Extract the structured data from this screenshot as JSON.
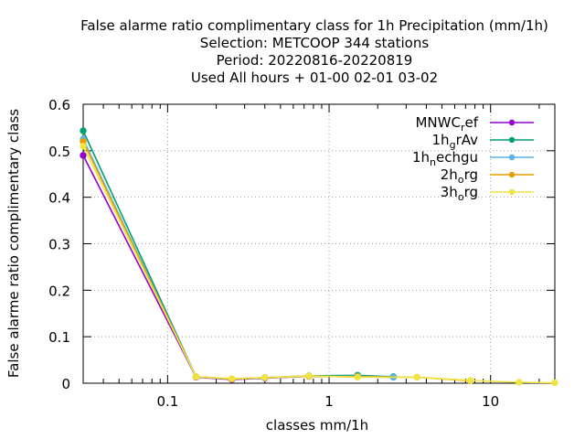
{
  "chart_data": {
    "type": "line",
    "title_lines": [
      "False alarme ratio complimentary class  for 1h Precipitation (mm/1h)",
      "Selection: METCOOP    344 stations",
      "Period: 20220816-20220819",
      "Used  All hours + 01-00 02-01 03-02"
    ],
    "xlabel": "classes mm/1h",
    "ylabel": "False alarme ratio complimentary class",
    "x_scale": "log",
    "xlim": [
      0.03,
      25
    ],
    "ylim": [
      0,
      0.6
    ],
    "x_ticks": [
      {
        "value": 0.1,
        "label": "0.1"
      },
      {
        "value": 1,
        "label": "1"
      },
      {
        "value": 10,
        "label": "10"
      }
    ],
    "y_ticks": [
      {
        "value": 0,
        "label": "0"
      },
      {
        "value": 0.1,
        "label": "0.1"
      },
      {
        "value": 0.2,
        "label": "0.2"
      },
      {
        "value": 0.3,
        "label": "0.3"
      },
      {
        "value": 0.4,
        "label": "0.4"
      },
      {
        "value": 0.5,
        "label": "0.5"
      },
      {
        "value": 0.6,
        "label": "0.6"
      }
    ],
    "grid": true,
    "legend_position": "top-right",
    "series": [
      {
        "name": "MNWC_ref",
        "legend_main": "MNWC",
        "legend_sub": "r",
        "legend_tail": "ef",
        "color": "#9400d3",
        "x": [
          0.03,
          0.15,
          0.25,
          0.4,
          0.75,
          1.5,
          2.5
        ],
        "y": [
          0.49,
          0.013,
          0.008,
          0.011,
          0.015,
          0.014,
          0.013
        ]
      },
      {
        "name": "1h_grAv",
        "legend_main": "1h",
        "legend_sub": "g",
        "legend_tail": "rAv",
        "color": "#009e73",
        "x": [
          0.03,
          0.15,
          0.25,
          0.4,
          0.75,
          1.5,
          2.5
        ],
        "y": [
          0.543,
          0.014,
          0.009,
          0.012,
          0.016,
          0.017,
          0.014
        ]
      },
      {
        "name": "1h_nechgu",
        "legend_main": "1h",
        "legend_sub": "n",
        "legend_tail": "echgu",
        "color": "#56b4e9",
        "x": [
          0.03,
          0.15,
          0.25,
          0.4,
          0.75,
          1.5,
          2.5
        ],
        "y": [
          0.525,
          0.014,
          0.009,
          0.012,
          0.015,
          0.015,
          0.013
        ]
      },
      {
        "name": "2h_org",
        "legend_main": "2h",
        "legend_sub": "o",
        "legend_tail": "rg",
        "color": "#e69f00",
        "x": [
          0.03,
          0.15,
          0.25,
          0.4,
          0.75,
          1.5,
          3.5,
          7.5
        ],
        "y": [
          0.52,
          0.014,
          0.009,
          0.012,
          0.015,
          0.014,
          0.013,
          0.005
        ]
      },
      {
        "name": "3h_org",
        "legend_main": "3h",
        "legend_sub": "o",
        "legend_tail": "rg",
        "color": "#f0e442",
        "x": [
          0.03,
          0.15,
          0.25,
          0.4,
          0.75,
          1.5,
          3.5,
          7.5,
          15,
          25
        ],
        "y": [
          0.51,
          0.014,
          0.01,
          0.012,
          0.016,
          0.013,
          0.013,
          0.006,
          0.002,
          0.001
        ]
      }
    ]
  }
}
